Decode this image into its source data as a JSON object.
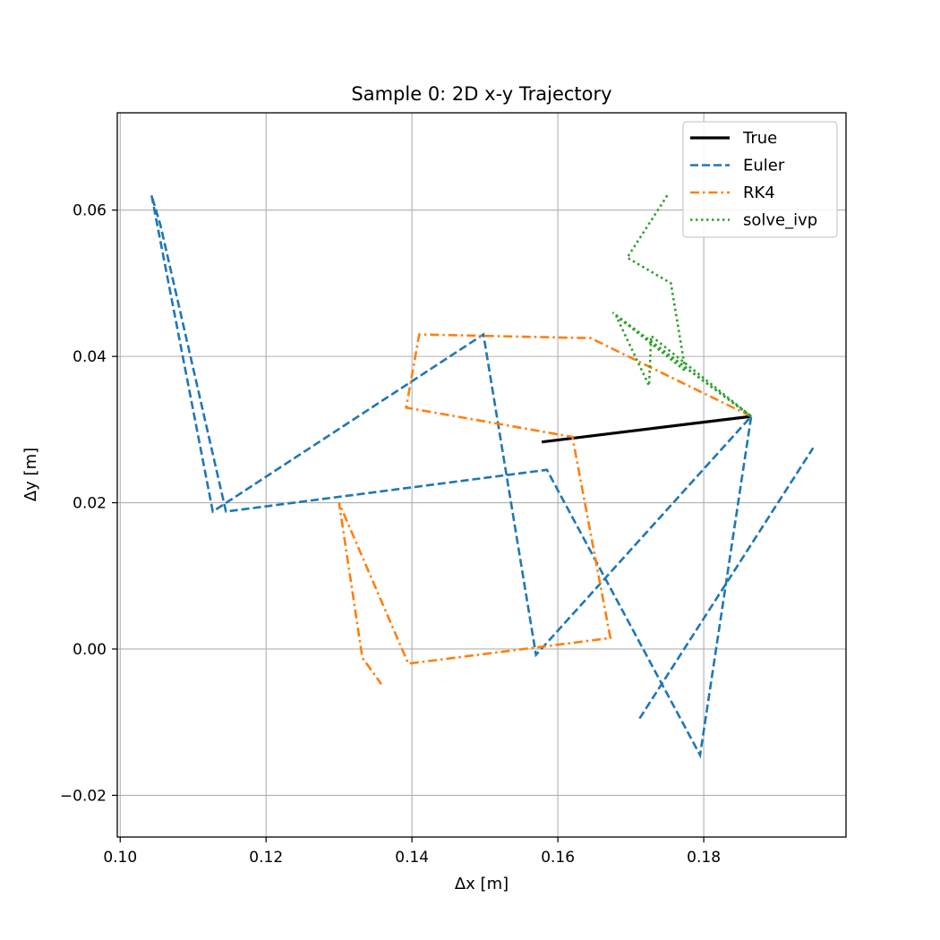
{
  "chart_data": {
    "type": "line",
    "title": "Sample 0: 2D x-y Trajectory",
    "xlabel": "Δx [m]",
    "ylabel": "Δy [m]",
    "xlim": [
      0.0996,
      0.1995
    ],
    "ylim": [
      -0.0257,
      0.0733
    ],
    "xticks": [
      0.1,
      0.12,
      0.14,
      0.16,
      0.18
    ],
    "xtick_labels": [
      "0.10",
      "0.12",
      "0.14",
      "0.16",
      "0.18"
    ],
    "yticks": [
      -0.02,
      0.0,
      0.02,
      0.04,
      0.06
    ],
    "ytick_labels": [
      "−0.02",
      "0.00",
      "0.02",
      "0.04",
      "0.06"
    ],
    "grid": true,
    "legend_position": "top-right",
    "series": [
      {
        "name": "True",
        "color": "#000000",
        "style": "solid",
        "points": [
          [
            0.1578,
            0.0283
          ],
          [
            0.1865,
            0.0318
          ]
        ]
      },
      {
        "name": "Euler",
        "color": "#1f77b4",
        "style": "dashed",
        "points": [
          [
            0.1043,
            0.062
          ],
          [
            0.1127,
            0.0188
          ],
          [
            0.1498,
            0.043
          ],
          [
            0.157,
            -0.0008
          ],
          [
            0.1865,
            0.0318
          ],
          [
            0.1795,
            -0.0145
          ],
          [
            0.1585,
            0.0245
          ],
          [
            0.1145,
            0.0188
          ],
          [
            0.1055,
            0.058
          ],
          [
            0.1043,
            0.062
          ]
        ]
      },
      {
        "name": "Euler",
        "color": "#1f77b4",
        "style": "dashed",
        "points": [
          [
            0.1712,
            -0.0095
          ],
          [
            0.195,
            0.0275
          ]
        ]
      },
      {
        "name": "RK4",
        "color": "#ff7f0e",
        "style": "dashdot",
        "points": [
          [
            0.1865,
            0.0318
          ],
          [
            0.1645,
            0.0425
          ],
          [
            0.141,
            0.043
          ],
          [
            0.1392,
            0.033
          ],
          [
            0.162,
            0.029
          ],
          [
            0.1672,
            0.0015
          ],
          [
            0.1395,
            -0.002
          ],
          [
            0.13,
            0.02
          ],
          [
            0.1332,
            -0.0012
          ],
          [
            0.1358,
            -0.0048
          ]
        ]
      },
      {
        "name": "solve_ivp",
        "color": "#2ca02c",
        "style": "dotted",
        "points": [
          [
            0.1865,
            0.0318
          ],
          [
            0.1675,
            0.046
          ],
          [
            0.1775,
            0.038
          ],
          [
            0.1755,
            0.05
          ],
          [
            0.1695,
            0.0535
          ],
          [
            0.175,
            0.062
          ]
        ]
      },
      {
        "name": "solve_ivp",
        "color": "#2ca02c",
        "style": "dotted",
        "points": [
          [
            0.1865,
            0.0318
          ],
          [
            0.168,
            0.0455
          ],
          [
            0.1725,
            0.036
          ],
          [
            0.1728,
            0.0428
          ],
          [
            0.1865,
            0.0318
          ]
        ]
      }
    ],
    "legend": [
      {
        "label": "True",
        "color": "#000000",
        "style": "solid"
      },
      {
        "label": "Euler",
        "color": "#1f77b4",
        "style": "dashed"
      },
      {
        "label": "RK4",
        "color": "#ff7f0e",
        "style": "dashdot"
      },
      {
        "label": "solve_ivp",
        "color": "#2ca02c",
        "style": "dotted"
      }
    ]
  }
}
